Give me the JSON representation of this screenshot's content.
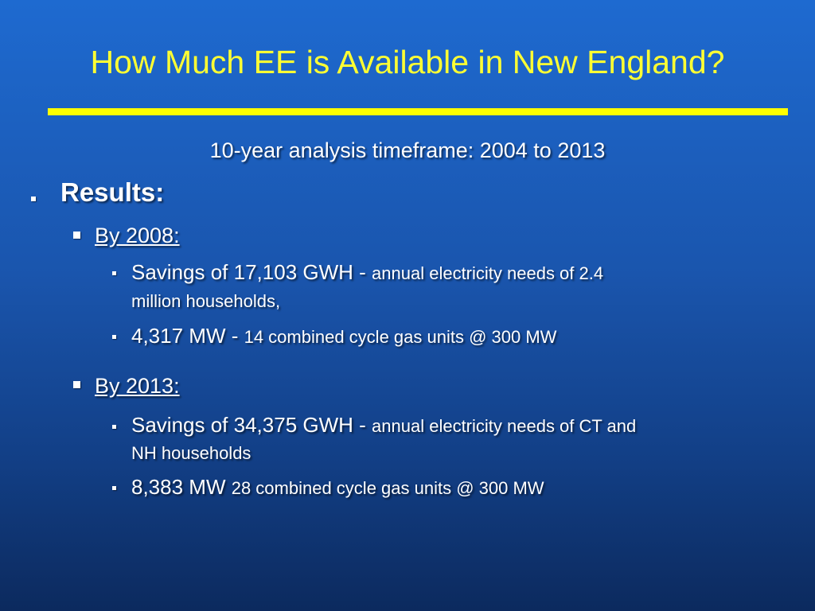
{
  "slide": {
    "title": "How Much EE is Available in New England?",
    "subtitle": "10-year analysis timeframe: 2004 to 2013",
    "results_label": "Results:",
    "by2008": {
      "label": "By 2008:",
      "item1_main": "Savings of 17,103 GWH - ",
      "item1_detail": "annual electricity needs of 2.4",
      "item1_detail_cont": "million households,",
      "item2_main": "4,317 MW  - ",
      "item2_detail": "14 combined cycle gas units @ 300 MW"
    },
    "by2013": {
      "label": "By 2013:",
      "item1_main": "Savings of 34,375 GWH - ",
      "item1_detail": "annual electricity needs of CT and",
      "item1_detail_cont": "NH households",
      "item2_main": "8,383 MW ",
      "item2_detail": "28 combined cycle gas units @ 300 MW"
    }
  },
  "colors": {
    "title": "#ffff33",
    "rule": "#ffff00",
    "text": "#ffffff",
    "background": "#1a55ad"
  }
}
